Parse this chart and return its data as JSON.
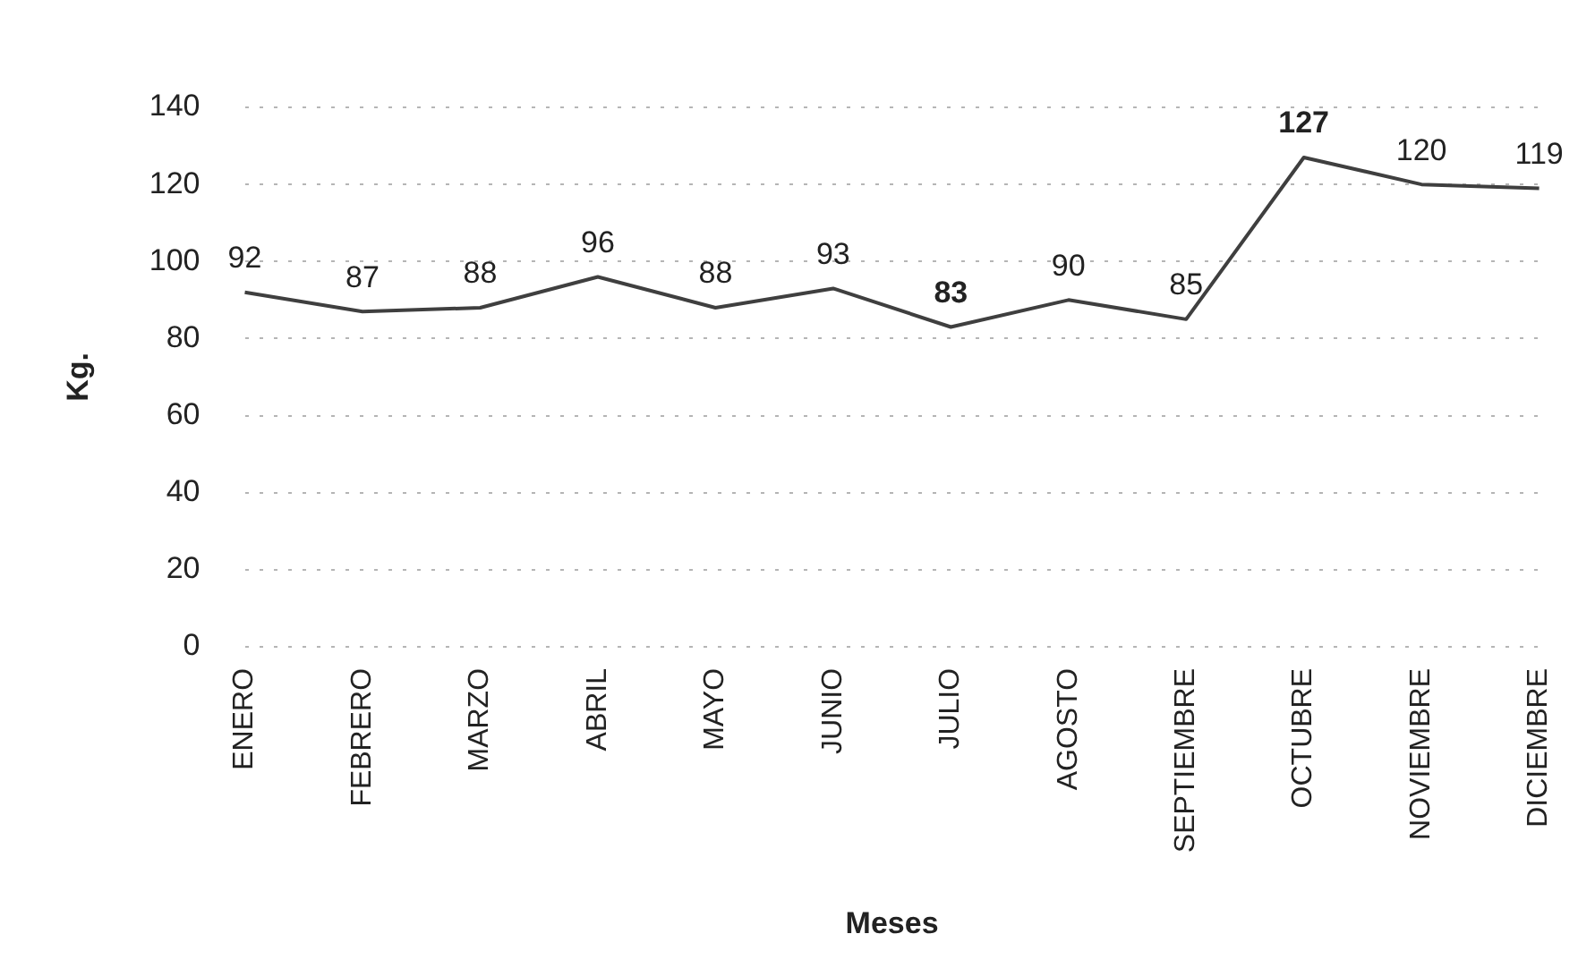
{
  "chart_data": {
    "type": "line",
    "xlabel": "Meses",
    "ylabel": "Kg.",
    "categories": [
      "ENERO",
      "FEBRERO",
      "MARZO",
      "ABRIL",
      "MAYO",
      "JUNIO",
      "JULIO",
      "AGOSTO",
      "SEPTIEMBRE",
      "OCTUBRE",
      "NOVIEMBRE",
      "DICIEMBRE"
    ],
    "series": [
      {
        "color": "#3f3f3f",
        "values": [
          92,
          87,
          88,
          96,
          88,
          93,
          83,
          90,
          85,
          127,
          120,
          119
        ]
      }
    ],
    "ylim": [
      0,
      140
    ],
    "yticks": [
      0,
      20,
      40,
      60,
      80,
      100,
      120,
      140
    ],
    "grid": "y",
    "legend": false,
    "marker": "none",
    "line_style": "solid",
    "data_labels": true
  }
}
